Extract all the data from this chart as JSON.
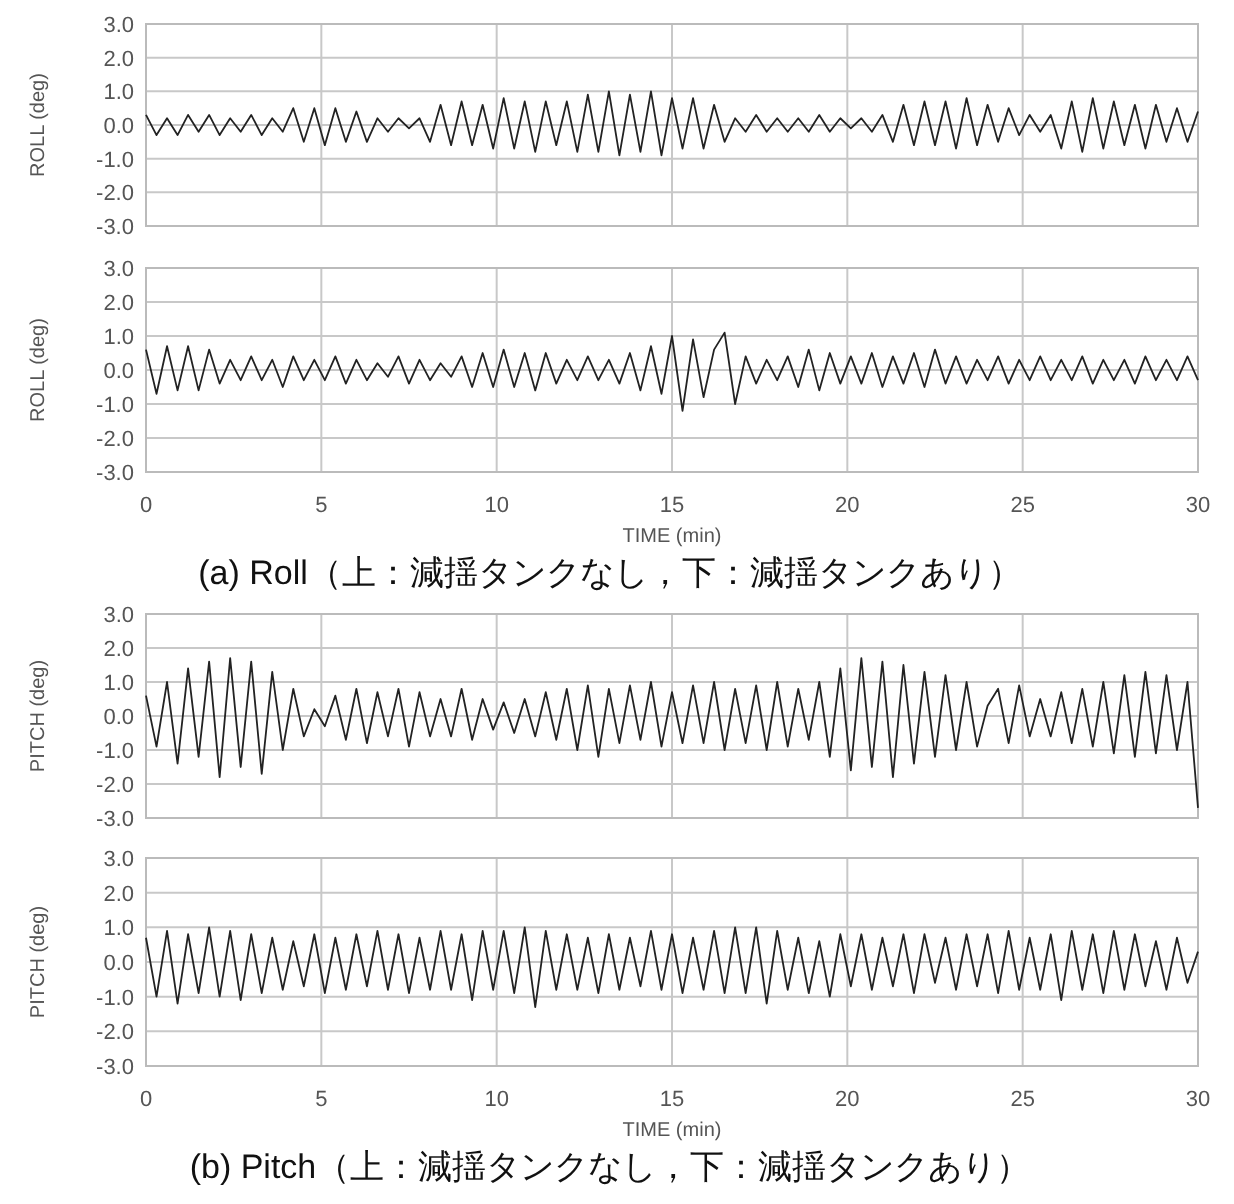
{
  "chart_data": [
    {
      "type": "line",
      "ylabel": "ROLL (deg)",
      "color": "#222222",
      "grid": true,
      "tick_labels": "y",
      "xlim": [
        0,
        30
      ],
      "xticks": [
        0,
        5,
        10,
        15,
        20,
        25,
        30
      ],
      "ylim": [
        -3,
        3
      ],
      "yticks": [
        {
          "value": 3,
          "label": "3.0"
        },
        {
          "value": 2,
          "label": "2.0"
        },
        {
          "value": 1,
          "label": "1.0"
        },
        {
          "value": 0,
          "label": "0.0"
        },
        {
          "value": -1,
          "label": "-1.0"
        },
        {
          "value": -2,
          "label": "-2.0"
        },
        {
          "value": -3,
          "label": "-3.0"
        }
      ],
      "x": [
        0,
        0.3,
        0.6,
        0.9,
        1.2,
        1.5,
        1.8,
        2.1,
        2.4,
        2.7,
        3,
        3.3,
        3.6,
        3.9,
        4.2,
        4.5,
        4.8,
        5.1,
        5.4,
        5.7,
        6,
        6.3,
        6.6,
        6.9,
        7.2,
        7.5,
        7.8,
        8.1,
        8.4,
        8.7,
        9,
        9.3,
        9.6,
        9.9,
        10.2,
        10.5,
        10.8,
        11.1,
        11.4,
        11.7,
        12,
        12.3,
        12.6,
        12.9,
        13.2,
        13.5,
        13.8,
        14.1,
        14.4,
        14.7,
        15,
        15.3,
        15.6,
        15.9,
        16.2,
        16.5,
        16.8,
        17.1,
        17.4,
        17.7,
        18,
        18.3,
        18.6,
        18.9,
        19.2,
        19.5,
        19.8,
        20.1,
        20.4,
        20.7,
        21,
        21.3,
        21.6,
        21.9,
        22.2,
        22.5,
        22.8,
        23.1,
        23.4,
        23.7,
        24,
        24.3,
        24.6,
        24.9,
        25.2,
        25.5,
        25.8,
        26.1,
        26.4,
        26.7,
        27,
        27.3,
        27.6,
        27.9,
        28.2,
        28.5,
        28.8,
        29.1,
        29.4,
        29.7,
        30
      ],
      "values": [
        0.3,
        -0.3,
        0.2,
        -0.3,
        0.3,
        -0.2,
        0.3,
        -0.3,
        0.2,
        -0.2,
        0.3,
        -0.3,
        0.2,
        -0.2,
        0.5,
        -0.5,
        0.5,
        -0.6,
        0.5,
        -0.5,
        0.4,
        -0.5,
        0.2,
        -0.2,
        0.2,
        -0.1,
        0.2,
        -0.5,
        0.6,
        -0.6,
        0.7,
        -0.6,
        0.6,
        -0.7,
        0.8,
        -0.7,
        0.7,
        -0.8,
        0.7,
        -0.6,
        0.7,
        -0.8,
        0.9,
        -0.8,
        1.0,
        -0.9,
        0.9,
        -0.8,
        1.0,
        -0.9,
        0.8,
        -0.7,
        0.8,
        -0.7,
        0.6,
        -0.5,
        0.2,
        -0.2,
        0.3,
        -0.2,
        0.2,
        -0.2,
        0.2,
        -0.2,
        0.3,
        -0.2,
        0.2,
        -0.1,
        0.2,
        -0.2,
        0.3,
        -0.5,
        0.6,
        -0.6,
        0.7,
        -0.6,
        0.7,
        -0.7,
        0.8,
        -0.6,
        0.6,
        -0.5,
        0.5,
        -0.3,
        0.3,
        -0.2,
        0.3,
        -0.7,
        0.7,
        -0.8,
        0.8,
        -0.7,
        0.7,
        -0.6,
        0.6,
        -0.7,
        0.6,
        -0.5,
        0.5,
        -0.5,
        0.4
      ]
    },
    {
      "type": "line",
      "ylabel": "ROLL (deg)",
      "xlabel": "TIME (min)",
      "color": "#222222",
      "grid": true,
      "annotations": [
        "(a) Roll（上：減揺タンクなし，下：減揺タンクあり）"
      ],
      "xlim": [
        0,
        30
      ],
      "xticks": [
        0,
        5,
        10,
        15,
        20,
        25,
        30
      ],
      "ylim": [
        -3,
        3
      ],
      "yticks": [
        {
          "value": 3,
          "label": "3.0"
        },
        {
          "value": 2,
          "label": "2.0"
        },
        {
          "value": 1,
          "label": "1.0"
        },
        {
          "value": 0,
          "label": "0.0"
        },
        {
          "value": -1,
          "label": "-1.0"
        },
        {
          "value": -2,
          "label": "-2.0"
        },
        {
          "value": -3,
          "label": "-3.0"
        }
      ],
      "x": [
        0,
        0.3,
        0.6,
        0.9,
        1.2,
        1.5,
        1.8,
        2.1,
        2.4,
        2.7,
        3,
        3.3,
        3.6,
        3.9,
        4.2,
        4.5,
        4.8,
        5.1,
        5.4,
        5.7,
        6,
        6.3,
        6.6,
        6.9,
        7.2,
        7.5,
        7.8,
        8.1,
        8.4,
        8.7,
        9,
        9.3,
        9.6,
        9.9,
        10.2,
        10.5,
        10.8,
        11.1,
        11.4,
        11.7,
        12,
        12.3,
        12.6,
        12.9,
        13.2,
        13.5,
        13.8,
        14.1,
        14.4,
        14.7,
        15,
        15.3,
        15.6,
        15.9,
        16.2,
        16.5,
        16.8,
        17.1,
        17.4,
        17.7,
        18,
        18.3,
        18.6,
        18.9,
        19.2,
        19.5,
        19.8,
        20.1,
        20.4,
        20.7,
        21,
        21.3,
        21.6,
        21.9,
        22.2,
        22.5,
        22.8,
        23.1,
        23.4,
        23.7,
        24,
        24.3,
        24.6,
        24.9,
        25.2,
        25.5,
        25.8,
        26.1,
        26.4,
        26.7,
        27,
        27.3,
        27.6,
        27.9,
        28.2,
        28.5,
        28.8,
        29.1,
        29.4,
        29.7,
        30
      ],
      "values": [
        0.6,
        -0.7,
        0.7,
        -0.6,
        0.7,
        -0.6,
        0.6,
        -0.4,
        0.3,
        -0.3,
        0.4,
        -0.3,
        0.3,
        -0.5,
        0.4,
        -0.3,
        0.3,
        -0.3,
        0.4,
        -0.4,
        0.3,
        -0.3,
        0.2,
        -0.2,
        0.4,
        -0.4,
        0.3,
        -0.3,
        0.2,
        -0.2,
        0.4,
        -0.5,
        0.5,
        -0.5,
        0.6,
        -0.5,
        0.5,
        -0.6,
        0.5,
        -0.4,
        0.3,
        -0.3,
        0.4,
        -0.3,
        0.3,
        -0.4,
        0.5,
        -0.6,
        0.7,
        -0.7,
        1.0,
        -1.2,
        0.9,
        -0.8,
        0.6,
        1.1,
        -1.0,
        0.4,
        -0.4,
        0.3,
        -0.3,
        0.4,
        -0.5,
        0.6,
        -0.6,
        0.5,
        -0.4,
        0.4,
        -0.4,
        0.5,
        -0.5,
        0.4,
        -0.4,
        0.5,
        -0.5,
        0.6,
        -0.4,
        0.4,
        -0.4,
        0.3,
        -0.3,
        0.4,
        -0.4,
        0.3,
        -0.3,
        0.4,
        -0.3,
        0.3,
        -0.3,
        0.4,
        -0.4,
        0.3,
        -0.3,
        0.3,
        -0.4,
        0.4,
        -0.3,
        0.3,
        -0.3,
        0.4,
        -0.3
      ]
    },
    {
      "type": "line",
      "ylabel": "PITCH (deg)",
      "color": "#222222",
      "grid": true,
      "tick_labels": "y",
      "xlim": [
        0,
        30
      ],
      "xticks": [
        0,
        5,
        10,
        15,
        20,
        25,
        30
      ],
      "ylim": [
        -3,
        3
      ],
      "yticks": [
        {
          "value": 3,
          "label": "3.0"
        },
        {
          "value": 2,
          "label": "2.0"
        },
        {
          "value": 1,
          "label": "1.0"
        },
        {
          "value": 0,
          "label": "0.0"
        },
        {
          "value": -1,
          "label": "-1.0"
        },
        {
          "value": -2,
          "label": "-2.0"
        },
        {
          "value": -3,
          "label": "-3.0"
        }
      ],
      "x": [
        0,
        0.3,
        0.6,
        0.9,
        1.2,
        1.5,
        1.8,
        2.1,
        2.4,
        2.7,
        3,
        3.3,
        3.6,
        3.9,
        4.2,
        4.5,
        4.8,
        5.1,
        5.4,
        5.7,
        6,
        6.3,
        6.6,
        6.9,
        7.2,
        7.5,
        7.8,
        8.1,
        8.4,
        8.7,
        9,
        9.3,
        9.6,
        9.9,
        10.2,
        10.5,
        10.8,
        11.1,
        11.4,
        11.7,
        12,
        12.3,
        12.6,
        12.9,
        13.2,
        13.5,
        13.8,
        14.1,
        14.4,
        14.7,
        15,
        15.3,
        15.6,
        15.9,
        16.2,
        16.5,
        16.8,
        17.1,
        17.4,
        17.7,
        18,
        18.3,
        18.6,
        18.9,
        19.2,
        19.5,
        19.8,
        20.1,
        20.4,
        20.7,
        21,
        21.3,
        21.6,
        21.9,
        22.2,
        22.5,
        22.8,
        23.1,
        23.4,
        23.7,
        24,
        24.3,
        24.6,
        24.9,
        25.2,
        25.5,
        25.8,
        26.1,
        26.4,
        26.7,
        27,
        27.3,
        27.6,
        27.9,
        28.2,
        28.5,
        28.8,
        29.1,
        29.4,
        29.7,
        30
      ],
      "values": [
        0.6,
        -0.9,
        1.0,
        -1.4,
        1.4,
        -1.2,
        1.6,
        -1.8,
        1.7,
        -1.5,
        1.6,
        -1.7,
        1.3,
        -1.0,
        0.8,
        -0.6,
        0.2,
        -0.3,
        0.6,
        -0.7,
        0.8,
        -0.8,
        0.7,
        -0.6,
        0.8,
        -0.9,
        0.7,
        -0.6,
        0.5,
        -0.6,
        0.8,
        -0.7,
        0.5,
        -0.4,
        0.4,
        -0.5,
        0.5,
        -0.6,
        0.7,
        -0.7,
        0.8,
        -1.0,
        0.9,
        -1.2,
        0.8,
        -0.8,
        0.9,
        -0.7,
        1.0,
        -0.9,
        0.7,
        -0.8,
        0.9,
        -0.8,
        1.0,
        -1.0,
        0.8,
        -0.8,
        0.9,
        -1.0,
        1.0,
        -0.9,
        0.8,
        -0.7,
        1.0,
        -1.2,
        1.4,
        -1.6,
        1.7,
        -1.5,
        1.6,
        -1.8,
        1.5,
        -1.4,
        1.3,
        -1.2,
        1.2,
        -1.0,
        1.0,
        -0.9,
        0.3,
        0.8,
        -0.8,
        0.9,
        -0.6,
        0.5,
        -0.6,
        0.7,
        -0.8,
        0.8,
        -0.9,
        1.0,
        -1.1,
        1.2,
        -1.2,
        1.3,
        -1.1,
        1.2,
        -1.0,
        1.0,
        -2.7
      ]
    },
    {
      "type": "line",
      "ylabel": "PITCH (deg)",
      "xlabel": "TIME (min)",
      "color": "#222222",
      "grid": true,
      "annotations": [
        "(b) Pitch（上：減揺タンクなし，下：減揺タンクあり）"
      ],
      "xlim": [
        0,
        30
      ],
      "xticks": [
        0,
        5,
        10,
        15,
        20,
        25,
        30
      ],
      "ylim": [
        -3,
        3
      ],
      "yticks": [
        {
          "value": 3,
          "label": "3.0"
        },
        {
          "value": 2,
          "label": "2.0"
        },
        {
          "value": 1,
          "label": "1.0"
        },
        {
          "value": 0,
          "label": "0.0"
        },
        {
          "value": -1,
          "label": "-1.0"
        },
        {
          "value": -2,
          "label": "-2.0"
        },
        {
          "value": -3,
          "label": "-3.0"
        }
      ],
      "x": [
        0,
        0.3,
        0.6,
        0.9,
        1.2,
        1.5,
        1.8,
        2.1,
        2.4,
        2.7,
        3,
        3.3,
        3.6,
        3.9,
        4.2,
        4.5,
        4.8,
        5.1,
        5.4,
        5.7,
        6,
        6.3,
        6.6,
        6.9,
        7.2,
        7.5,
        7.8,
        8.1,
        8.4,
        8.7,
        9,
        9.3,
        9.6,
        9.9,
        10.2,
        10.5,
        10.8,
        11.1,
        11.4,
        11.7,
        12,
        12.3,
        12.6,
        12.9,
        13.2,
        13.5,
        13.8,
        14.1,
        14.4,
        14.7,
        15,
        15.3,
        15.6,
        15.9,
        16.2,
        16.5,
        16.8,
        17.1,
        17.4,
        17.7,
        18,
        18.3,
        18.6,
        18.9,
        19.2,
        19.5,
        19.8,
        20.1,
        20.4,
        20.7,
        21,
        21.3,
        21.6,
        21.9,
        22.2,
        22.5,
        22.8,
        23.1,
        23.4,
        23.7,
        24,
        24.3,
        24.6,
        24.9,
        25.2,
        25.5,
        25.8,
        26.1,
        26.4,
        26.7,
        27,
        27.3,
        27.6,
        27.9,
        28.2,
        28.5,
        28.8,
        29.1,
        29.4,
        29.7,
        30
      ],
      "values": [
        0.7,
        -1.0,
        0.9,
        -1.2,
        0.8,
        -0.9,
        1.0,
        -1.0,
        0.9,
        -1.1,
        0.8,
        -0.9,
        0.7,
        -0.8,
        0.6,
        -0.7,
        0.8,
        -0.9,
        0.7,
        -0.8,
        0.8,
        -0.7,
        0.9,
        -0.8,
        0.8,
        -0.9,
        0.7,
        -0.8,
        0.9,
        -0.8,
        0.8,
        -1.1,
        0.9,
        -0.8,
        0.9,
        -0.9,
        1.0,
        -1.3,
        0.9,
        -0.8,
        0.8,
        -0.8,
        0.7,
        -0.9,
        0.8,
        -0.8,
        0.7,
        -0.7,
        0.9,
        -0.8,
        0.8,
        -0.9,
        0.7,
        -0.8,
        0.9,
        -0.9,
        1.0,
        -0.9,
        1.0,
        -1.2,
        0.9,
        -0.8,
        0.7,
        -0.9,
        0.6,
        -1.0,
        0.8,
        -0.7,
        0.8,
        -0.8,
        0.7,
        -0.7,
        0.8,
        -0.9,
        0.8,
        -0.6,
        0.7,
        -0.8,
        0.8,
        -0.7,
        0.8,
        -0.9,
        0.9,
        -0.8,
        0.7,
        -0.8,
        0.8,
        -1.1,
        0.9,
        -0.8,
        0.8,
        -0.9,
        0.9,
        -0.8,
        0.8,
        -0.7,
        0.6,
        -0.8,
        0.7,
        -0.6,
        0.3
      ]
    }
  ]
}
